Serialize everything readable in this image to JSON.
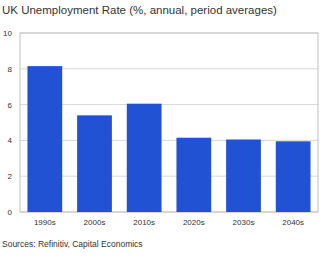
{
  "chart_data": {
    "type": "bar",
    "title": "UK Unemployment Rate (%, annual, period averages)",
    "categories": [
      "1990s",
      "2000s",
      "2010s",
      "2020s",
      "2030s",
      "2040s"
    ],
    "values": [
      8.15,
      5.4,
      6.05,
      4.15,
      4.05,
      3.95
    ],
    "color": "#2152d3",
    "ylim": [
      0,
      10
    ],
    "yticks": [
      0,
      2,
      4,
      6,
      8,
      10
    ],
    "grid": true,
    "source": "Sources: Refinitiv, Capital Economics"
  }
}
